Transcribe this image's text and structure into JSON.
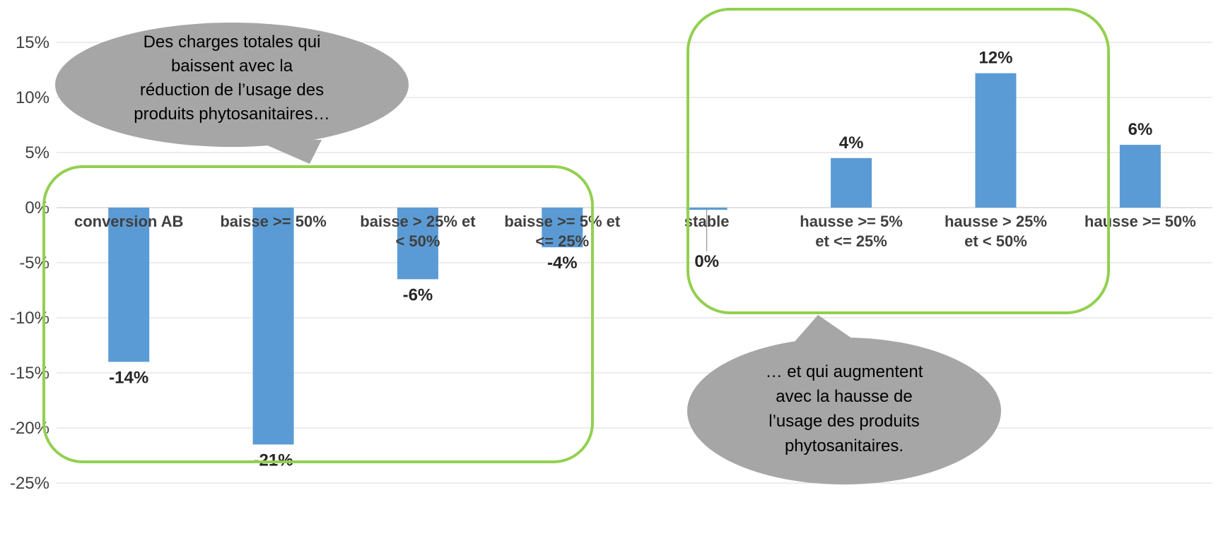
{
  "chart_data": {
    "type": "bar",
    "title": "",
    "xlabel": "",
    "ylabel": "",
    "ylim": [
      -25,
      15
    ],
    "yticks": [
      15,
      10,
      5,
      0,
      -5,
      -10,
      -15,
      -20,
      -25
    ],
    "ytick_labels": [
      "15%",
      "10%",
      "5%",
      "0%",
      "-5%",
      "-10%",
      "-15%",
      "-20%",
      "-25%"
    ],
    "grid": true,
    "categories": [
      [
        "conversion AB"
      ],
      [
        "baisse >= 50%"
      ],
      [
        "baisse > 25% et",
        "< 50%"
      ],
      [
        "baisse >= 5% et",
        "<= 25%"
      ],
      [
        "stable"
      ],
      [
        "hausse >= 5%",
        "et <= 25%"
      ],
      [
        "hausse > 25%",
        "et < 50%"
      ],
      [
        "hausse >= 50%"
      ]
    ],
    "values": [
      -14,
      -21.5,
      -6.5,
      -3.6,
      -0.2,
      4.5,
      12.2,
      5.7
    ],
    "data_labels": [
      "-14%",
      "-21%",
      "-6%",
      "-4%",
      "0%",
      "4%",
      "12%",
      "6%"
    ],
    "bar_color": "#5b9bd5",
    "grid_color": "#d9d9d9",
    "group_box_color": "#92d050",
    "bubble_color": "#a6a6a6",
    "annotations": [
      {
        "text": [
          "Des charges totales qui",
          "baissent avec  la",
          "réduction de l’usage des",
          "produits phytosanitaires…"
        ]
      },
      {
        "text": [
          "… et qui augmentent",
          "avec la hausse de",
          "l’usage des produits",
          "phytosanitaires."
        ]
      }
    ]
  }
}
